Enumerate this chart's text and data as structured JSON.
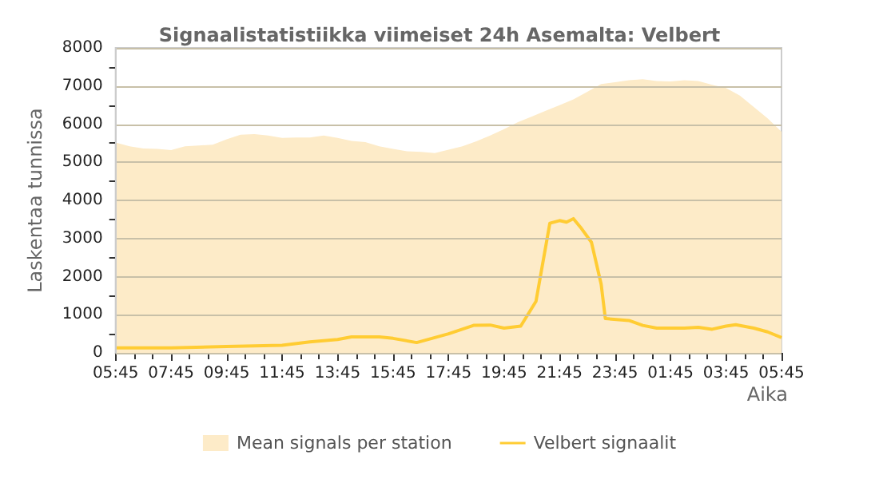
{
  "chart_data": {
    "type": "area",
    "title": "Signaalistatistiikka viimeiset 24h Asemalta: Velbert",
    "xlabel": "Aika",
    "ylabel": "Laskentaa tunnissa",
    "series": [
      {
        "name": "Mean signals per station",
        "type": "area",
        "color": "#fdebc8",
        "x": [
          "--01-01T05:45",
          "--01-01T06:15",
          "--01-01T06:45",
          "--01-01T07:15",
          "--01-01T07:45",
          "--01-01T08:15",
          "--01-01T08:45",
          "--01-01T09:15",
          "--01-01T09:45",
          "--01-01T10:15",
          "--01-01T10:45",
          "--01-01T11:15",
          "--01-01T11:45",
          "--01-01T12:15",
          "--01-01T12:45",
          "--01-01T13:15",
          "--01-01T13:45",
          "--01-01T14:15",
          "--01-01T14:45",
          "--01-01T15:15",
          "--01-01T15:45",
          "--01-01T16:15",
          "--01-01T16:45",
          "--01-01T17:15",
          "--01-01T17:45",
          "--01-01T18:15",
          "--01-01T18:45",
          "--01-01T19:15",
          "--01-01T19:45",
          "--01-01T20:15",
          "--01-01T20:45",
          "--01-01T21:15",
          "--01-01T21:45",
          "--01-01T22:15",
          "--01-01T22:45",
          "--01-01T23:15",
          "--01-01T23:45",
          "--01-02T00:15",
          "--01-02T00:45",
          "--01-02T01:15",
          "--01-02T01:45",
          "--01-02T02:15",
          "--01-02T02:45",
          "--01-02T03:15",
          "--01-02T03:45",
          "--01-02T04:15",
          "--01-02T04:45",
          "--01-02T05:15",
          "--01-02T05:45"
        ],
        "values": [
          5520,
          5420,
          5360,
          5350,
          5320,
          5420,
          5440,
          5460,
          5600,
          5720,
          5740,
          5700,
          5640,
          5650,
          5650,
          5700,
          5640,
          5560,
          5530,
          5420,
          5350,
          5290,
          5270,
          5240,
          5330,
          5420,
          5550,
          5700,
          5870,
          6050,
          6200,
          6350,
          6500,
          6650,
          6850,
          7050,
          7100,
          7150,
          7180,
          7130,
          7120,
          7150,
          7130,
          7030,
          6950,
          6750,
          6450,
          6150,
          5800
        ]
      },
      {
        "name": "Velbert signaalit",
        "type": "line",
        "color": "#ffcc33",
        "x": [
          "--01-01T05:45",
          "--01-01T07:45",
          "--01-01T09:45",
          "--01-01T11:45",
          "--01-01T12:45",
          "--01-01T13:45",
          "--01-01T14:15",
          "--01-01T15:15",
          "--01-01T15:45",
          "--01-01T16:36",
          "--01-01T17:45",
          "--01-01T18:39",
          "--01-01T19:15",
          "--01-01T19:45",
          "--01-01T20:21",
          "--01-01T20:54",
          "--01-01T21:24",
          "--01-01T21:45",
          "--01-01T22:00",
          "--01-01T22:15",
          "--01-01T22:30",
          "--01-01T22:54",
          "--01-01T23:15",
          "--01-01T23:24",
          "--01-02T00:15",
          "--01-02T00:45",
          "--01-02T01:15",
          "--01-02T01:45",
          "--01-02T02:15",
          "--01-02T02:45",
          "--01-02T03:15",
          "--01-02T03:45",
          "--01-02T04:06",
          "--01-02T04:45",
          "--01-02T05:15",
          "--01-02T05:45"
        ],
        "values": [
          130,
          130,
          170,
          200,
          290,
          350,
          420,
          420,
          380,
          270,
          500,
          720,
          730,
          650,
          700,
          1350,
          3400,
          3470,
          3430,
          3520,
          3300,
          2900,
          1800,
          900,
          850,
          720,
          650,
          650,
          650,
          670,
          620,
          700,
          740,
          650,
          550,
          400
        ]
      }
    ],
    "xlim": [
      "--01-01T05:45",
      "--01-02T05:45"
    ],
    "xticks": [
      {
        "value": "--01-01T05:45",
        "label": "05:45"
      },
      {
        "value": "--01-01T07:45",
        "label": "07:45"
      },
      {
        "value": "--01-01T09:45",
        "label": "09:45"
      },
      {
        "value": "--01-01T11:45",
        "label": "11:45"
      },
      {
        "value": "--01-01T13:45",
        "label": "13:45"
      },
      {
        "value": "--01-01T15:45",
        "label": "15:45"
      },
      {
        "value": "--01-01T17:45",
        "label": "17:45"
      },
      {
        "value": "--01-01T19:45",
        "label": "19:45"
      },
      {
        "value": "--01-01T21:45",
        "label": "21:45"
      },
      {
        "value": "--01-01T23:45",
        "label": "23:45"
      },
      {
        "value": "--01-02T01:45",
        "label": "01:45"
      },
      {
        "value": "--01-02T03:45",
        "label": "03:45"
      },
      {
        "value": "--01-02T05:45",
        "label": "05:45"
      },
      {
        "value": "--01-01T06:25",
        "label": null
      },
      {
        "value": "--01-01T07:05",
        "label": null
      },
      {
        "value": "--01-01T08:25",
        "label": null
      },
      {
        "value": "--01-01T09:05",
        "label": null
      },
      {
        "value": "--01-01T10:25",
        "label": null
      },
      {
        "value": "--01-01T11:05",
        "label": null
      },
      {
        "value": "--01-01T12:25",
        "label": null
      },
      {
        "value": "--01-01T13:05",
        "label": null
      },
      {
        "value": "--01-01T14:25",
        "label": null
      },
      {
        "value": "--01-01T15:05",
        "label": null
      },
      {
        "value": "--01-01T16:25",
        "label": null
      },
      {
        "value": "--01-01T17:05",
        "label": null
      },
      {
        "value": "--01-01T18:25",
        "label": null
      },
      {
        "value": "--01-01T19:05",
        "label": null
      },
      {
        "value": "--01-01T20:25",
        "label": null
      },
      {
        "value": "--01-01T21:05",
        "label": null
      },
      {
        "value": "--01-01T22:25",
        "label": null
      },
      {
        "value": "--01-01T23:05",
        "label": null
      },
      {
        "value": "--01-02T00:25",
        "label": null
      },
      {
        "value": "--01-02T01:05",
        "label": null
      },
      {
        "value": "--01-02T02:25",
        "label": null
      },
      {
        "value": "--01-02T03:05",
        "label": null
      },
      {
        "value": "--01-02T04:25",
        "label": null
      },
      {
        "value": "--01-02T05:05",
        "label": null
      }
    ],
    "ylim": [
      0,
      8000
    ],
    "yticks": [
      0,
      1000,
      2000,
      3000,
      4000,
      5000,
      6000,
      7000,
      8000,
      {
        "value": 500,
        "label": null
      },
      {
        "value": 1500,
        "label": null
      },
      {
        "value": 2500,
        "label": null
      },
      {
        "value": 3500,
        "label": null
      },
      {
        "value": 4500,
        "label": null
      },
      {
        "value": 5500,
        "label": null
      },
      {
        "value": 6500,
        "label": null
      },
      {
        "value": 7500,
        "label": null
      }
    ],
    "grid": "y",
    "legend": "bottom",
    "marker": "none"
  }
}
